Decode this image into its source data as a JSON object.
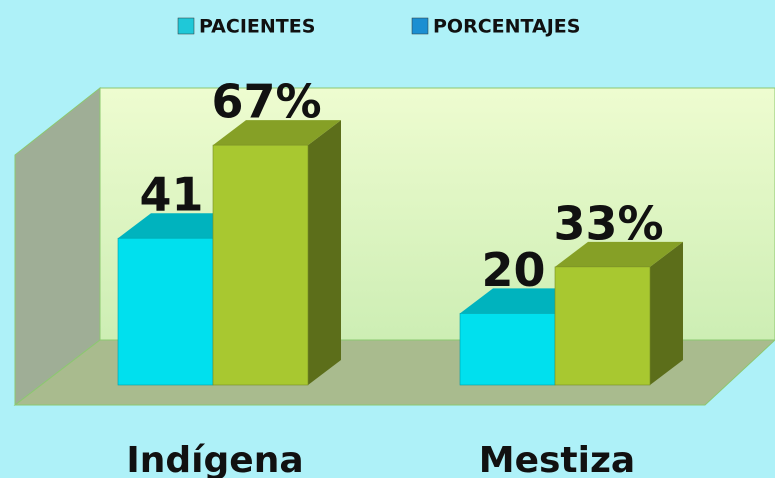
{
  "chart_data": {
    "type": "bar3d",
    "categories": [
      "Indígena",
      "Mestiza"
    ],
    "series": [
      {
        "name": "PACIENTES",
        "color": "#00e0ee",
        "legend_color": "#1fc8d8",
        "values": [
          41,
          20
        ]
      },
      {
        "name": "PORCENTAJES",
        "color": "#a8c830",
        "legend_color": "#1b8fd2",
        "values": [
          67,
          33
        ],
        "value_labels": [
          "67%",
          "33%"
        ]
      }
    ]
  }
}
